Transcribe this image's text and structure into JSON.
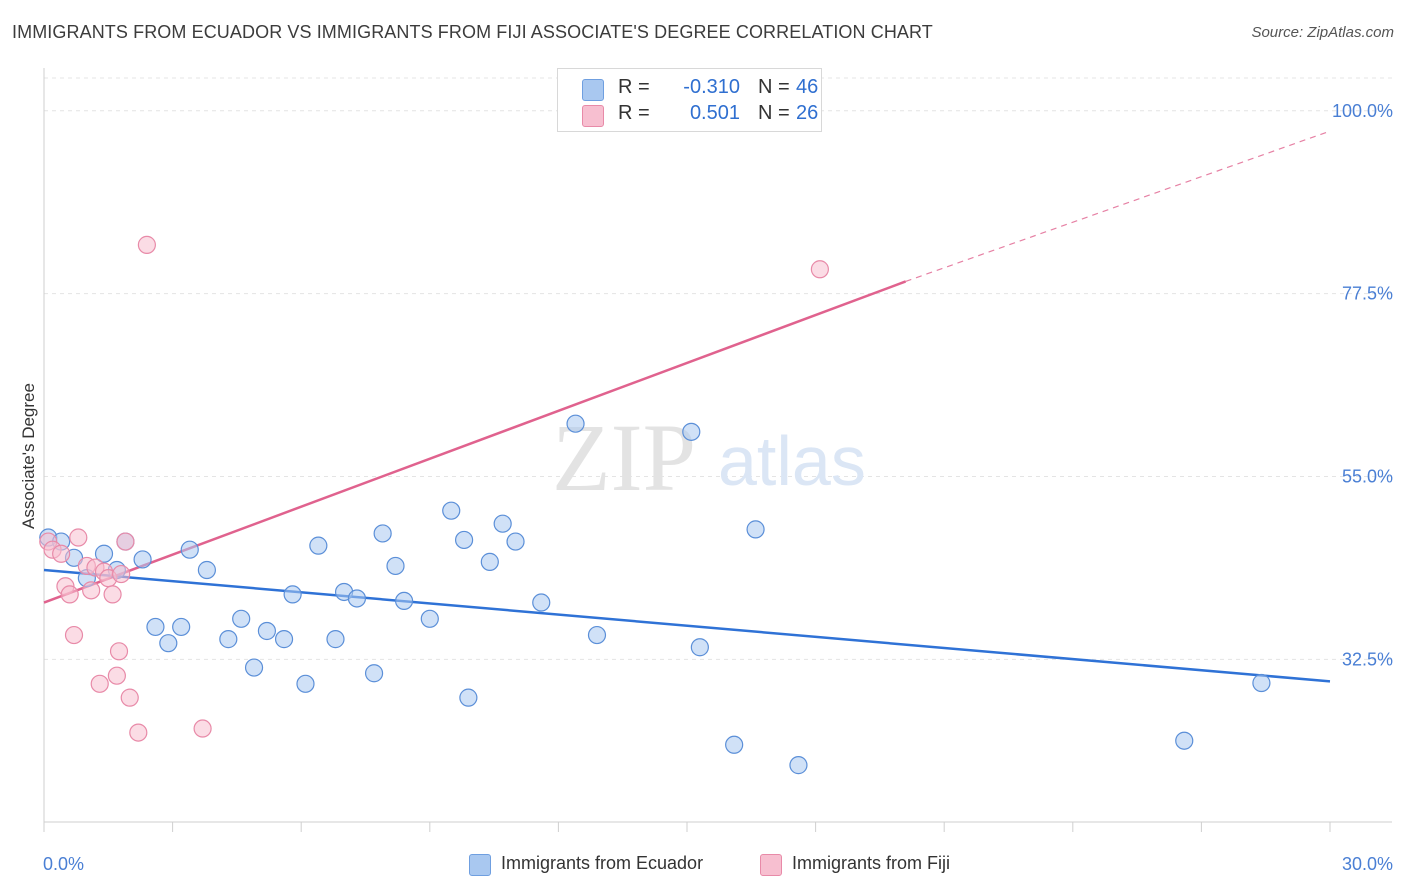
{
  "title": "IMMIGRANTS FROM ECUADOR VS IMMIGRANTS FROM FIJI ASSOCIATE'S DEGREE CORRELATION CHART",
  "source": "Source: ZipAtlas.com",
  "watermark": {
    "zip": "ZIP",
    "atlas": "atlas"
  },
  "stats": [
    {
      "r_label": "R =",
      "r_value": "-0.310",
      "n_label": "N =",
      "n_value": "46",
      "color": "#a9c8f0",
      "border": "#6f9fe0"
    },
    {
      "r_label": "R =",
      "r_value": "0.501",
      "n_label": "N =",
      "n_value": "26",
      "color": "#f7bfd0",
      "border": "#e88aa8"
    }
  ],
  "legend": [
    {
      "label": "Immigrants from Ecuador",
      "color": "#a9c8f0",
      "border": "#6f9fe0"
    },
    {
      "label": "Immigrants from Fiji",
      "color": "#f7bfd0",
      "border": "#e88aa8"
    }
  ],
  "chart_data": {
    "type": "scatter",
    "title": "IMMIGRANTS FROM ECUADOR VS IMMIGRANTS FROM FIJI ASSOCIATE'S DEGREE CORRELATION CHART",
    "xlabel": "",
    "ylabel": "Associate's Degree",
    "xlim": [
      0,
      30
    ],
    "ylim": [
      12.5,
      106
    ],
    "x_tick_labels": [
      "0.0%",
      "30.0%"
    ],
    "y_ticks": [
      32.5,
      55.0,
      77.5,
      100.0
    ],
    "y_tick_labels": [
      "32.5%",
      "55.0%",
      "77.5%",
      "100.0%"
    ],
    "grid": true,
    "series": [
      {
        "name": "Immigrants from Ecuador",
        "color": "#5b8fd8",
        "fill": "#a9c8f0",
        "trend": {
          "x": [
            0,
            30
          ],
          "y": [
            43.5,
            29.8
          ],
          "color": "#2f72d6"
        },
        "points": [
          [
            0.1,
            47.5
          ],
          [
            0.4,
            47.0
          ],
          [
            0.7,
            45.0
          ],
          [
            1.0,
            42.5
          ],
          [
            1.4,
            45.5
          ],
          [
            1.7,
            43.5
          ],
          [
            1.9,
            47.0
          ],
          [
            2.3,
            44.8
          ],
          [
            2.6,
            36.5
          ],
          [
            2.9,
            34.5
          ],
          [
            3.2,
            36.5
          ],
          [
            3.4,
            46.0
          ],
          [
            3.8,
            43.5
          ],
          [
            4.3,
            35.0
          ],
          [
            4.6,
            37.5
          ],
          [
            4.9,
            31.5
          ],
          [
            5.2,
            36.0
          ],
          [
            5.6,
            35.0
          ],
          [
            5.8,
            40.5
          ],
          [
            6.1,
            29.5
          ],
          [
            6.4,
            46.5
          ],
          [
            6.8,
            35.0
          ],
          [
            7.0,
            40.8
          ],
          [
            7.3,
            40.0
          ],
          [
            7.7,
            30.8
          ],
          [
            7.9,
            48.0
          ],
          [
            8.2,
            44.0
          ],
          [
            8.4,
            39.7
          ],
          [
            9.0,
            37.5
          ],
          [
            9.5,
            50.8
          ],
          [
            9.8,
            47.2
          ],
          [
            9.9,
            27.8
          ],
          [
            10.4,
            44.5
          ],
          [
            10.7,
            49.2
          ],
          [
            11.0,
            47.0
          ],
          [
            11.6,
            39.5
          ],
          [
            12.4,
            61.5
          ],
          [
            12.9,
            35.5
          ],
          [
            15.1,
            60.5
          ],
          [
            15.3,
            34.0
          ],
          [
            16.1,
            22.0
          ],
          [
            16.6,
            48.5
          ],
          [
            17.6,
            19.5
          ],
          [
            26.6,
            22.5
          ],
          [
            28.4,
            29.6
          ]
        ]
      },
      {
        "name": "Immigrants from Fiji",
        "color": "#e88aa8",
        "fill": "#f7bfd0",
        "trend": {
          "x": [
            0,
            20.1
          ],
          "y": [
            39.5,
            79.0
          ],
          "dash_to": [
            30,
            97.5
          ],
          "color": "#e0628e"
        },
        "points": [
          [
            0.1,
            47.0
          ],
          [
            0.2,
            46.0
          ],
          [
            0.4,
            45.5
          ],
          [
            0.5,
            41.5
          ],
          [
            0.6,
            40.5
          ],
          [
            0.7,
            35.5
          ],
          [
            0.8,
            47.5
          ],
          [
            1.0,
            44.0
          ],
          [
            1.1,
            41.0
          ],
          [
            1.2,
            43.8
          ],
          [
            1.3,
            29.5
          ],
          [
            1.4,
            43.3
          ],
          [
            1.5,
            42.5
          ],
          [
            1.6,
            40.5
          ],
          [
            1.7,
            30.5
          ],
          [
            1.75,
            33.5
          ],
          [
            1.8,
            43.0
          ],
          [
            1.9,
            47.0
          ],
          [
            2.0,
            27.8
          ],
          [
            2.2,
            23.5
          ],
          [
            2.4,
            83.5
          ],
          [
            3.7,
            24.0
          ],
          [
            18.1,
            80.5
          ]
        ]
      }
    ]
  }
}
